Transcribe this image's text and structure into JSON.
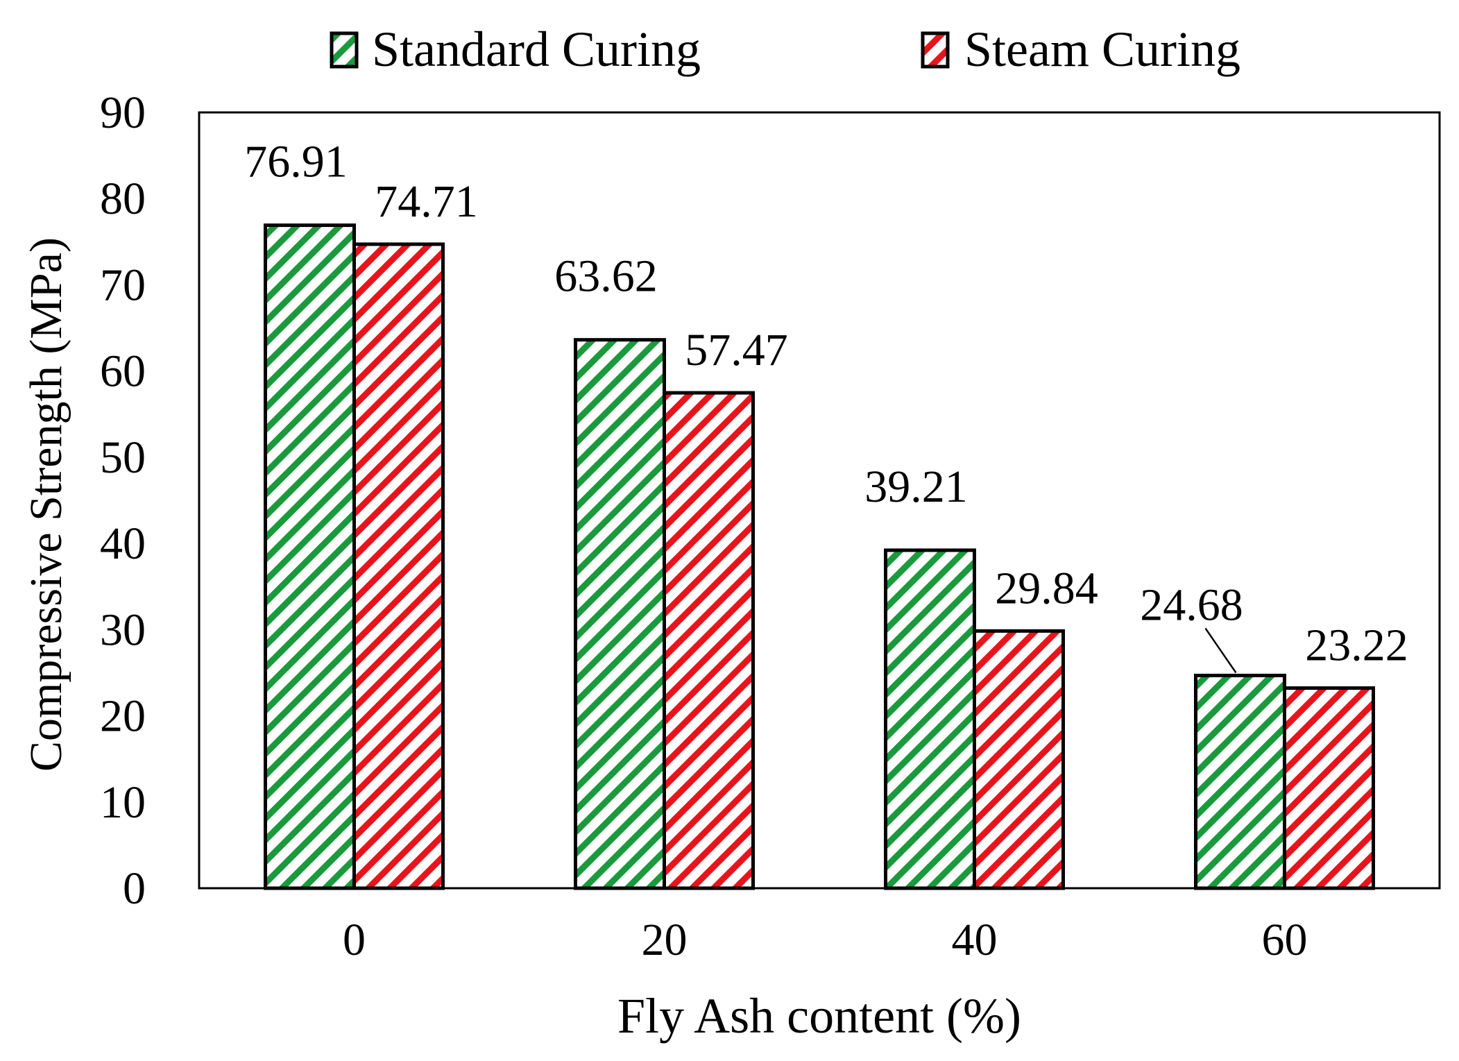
{
  "chart_data": {
    "type": "bar",
    "title": "",
    "xlabel": "Fly Ash content (%)",
    "ylabel": "Compressive Strength (MPa)",
    "categories": [
      "0",
      "20",
      "40",
      "60"
    ],
    "ylim": [
      0,
      90
    ],
    "yticks": [
      0,
      10,
      20,
      30,
      40,
      50,
      60,
      70,
      80,
      90
    ],
    "ytick_labels": [
      "0",
      "10",
      "20",
      "30",
      "40",
      "50",
      "60",
      "70",
      "80",
      "90"
    ],
    "grid": false,
    "legend_position": "top",
    "series": [
      {
        "name": "Standard Curing",
        "color": "#1a9a3c",
        "values": [
          76.91,
          63.62,
          39.21,
          24.68
        ],
        "labels": [
          "76.91",
          "63.62",
          "39.21",
          "24.68"
        ]
      },
      {
        "name": "Steam Curing",
        "color": "#e8141c",
        "values": [
          74.71,
          57.47,
          29.84,
          23.22
        ],
        "labels": [
          "74.71",
          "57.47",
          "29.84",
          "23.22"
        ]
      }
    ]
  }
}
